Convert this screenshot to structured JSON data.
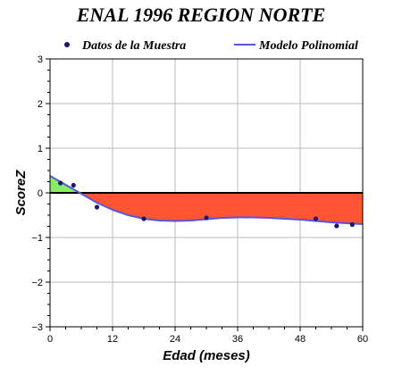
{
  "chart_data": {
    "type": "scatter",
    "title": "ENAL 1996 REGION NORTE",
    "xlabel": "Edad (meses)",
    "ylabel": "ScoreZ",
    "xlim": [
      0,
      60
    ],
    "ylim": [
      -3,
      3
    ],
    "xticks": [
      "0",
      "12",
      "24",
      "36",
      "48",
      "60"
    ],
    "yticks": [
      "3",
      "2",
      "1",
      "0",
      "−1",
      "−2",
      "−3"
    ],
    "grid": true,
    "legend_position": "top",
    "series": [
      {
        "name": "Datos de la Muestra",
        "kind": "points",
        "color": "#1a1a66",
        "x": [
          2,
          4.5,
          9,
          18,
          30,
          51,
          55,
          58
        ],
        "y": [
          0.22,
          0.17,
          -0.32,
          -0.58,
          -0.56,
          -0.58,
          -0.74,
          -0.71
        ]
      },
      {
        "name": "Modelo Polinomial",
        "kind": "line",
        "color": "#5555dd",
        "x": [
          0,
          3,
          6,
          9,
          12,
          15,
          18,
          21,
          24,
          27,
          30,
          33,
          36,
          39,
          42,
          45,
          48,
          51,
          54,
          57,
          60
        ],
        "y": [
          0.38,
          0.18,
          -0.02,
          -0.22,
          -0.38,
          -0.5,
          -0.58,
          -0.62,
          -0.63,
          -0.62,
          -0.59,
          -0.56,
          -0.55,
          -0.55,
          -0.56,
          -0.58,
          -0.6,
          -0.63,
          -0.66,
          -0.68,
          -0.7
        ]
      }
    ],
    "fill_positive_color": "#88ee66",
    "fill_negative_color": "#ff5533",
    "zero_line": true
  }
}
